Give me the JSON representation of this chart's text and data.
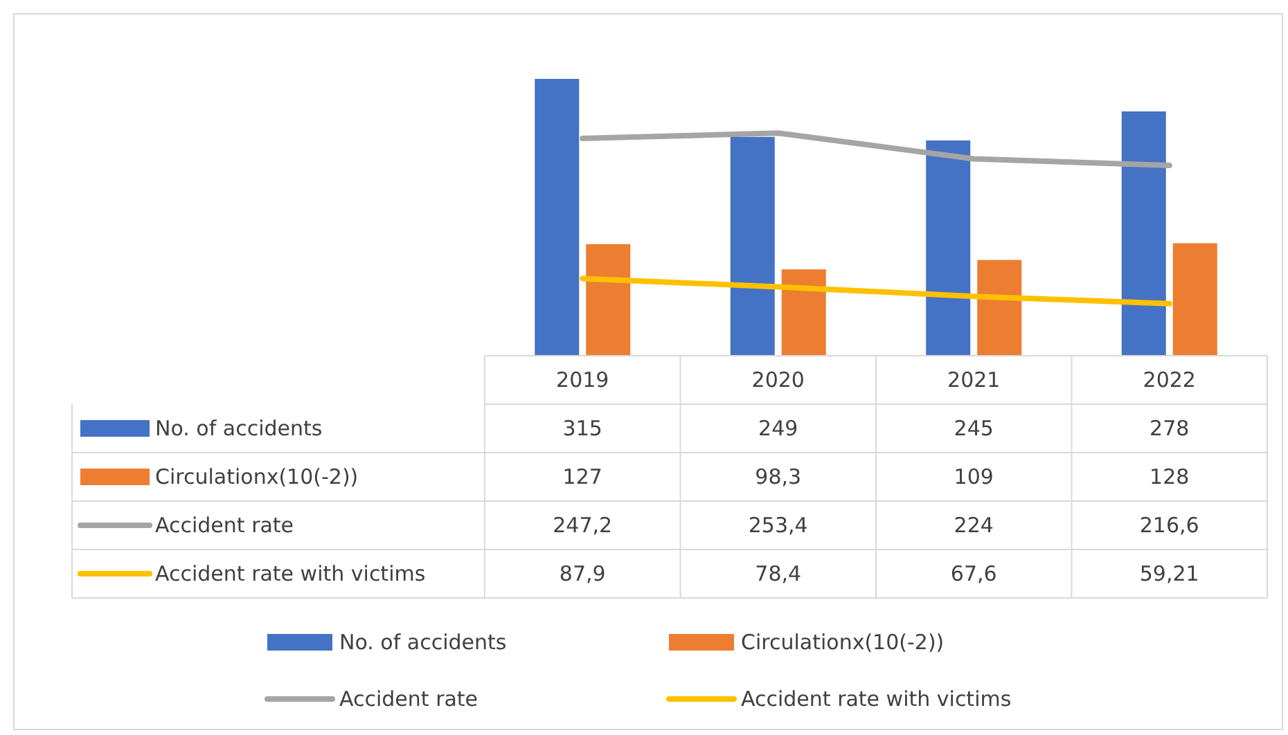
{
  "chart_data": {
    "type": "bar",
    "categories": [
      "2019",
      "2020",
      "2021",
      "2022"
    ],
    "series": [
      {
        "name": "No. of accidents",
        "color": "#4472c4",
        "values": [
          315,
          249,
          245,
          278
        ],
        "value_labels": [
          "315",
          "249",
          "245",
          "278"
        ]
      },
      {
        "name": "Circulationx(10(-2))",
        "color": "#ed7d31",
        "values": [
          127,
          98.3,
          109,
          128
        ],
        "value_labels": [
          "127",
          "98,3",
          "109",
          "128"
        ]
      },
      {
        "name": "Accident rate",
        "type": "line",
        "color": "#a5a5a5",
        "values": [
          247.2,
          253.4,
          224,
          216.6
        ],
        "value_labels": [
          "247,2",
          "253,4",
          "224",
          "216,6"
        ]
      },
      {
        "name": "Accident rate with victims",
        "type": "line",
        "color": "#ffc000",
        "values": [
          87.9,
          78.4,
          67.6,
          59.21
        ],
        "value_labels": [
          "87,9",
          "78,4",
          "67,6",
          "59,21"
        ]
      }
    ],
    "legend": "bottom"
  }
}
